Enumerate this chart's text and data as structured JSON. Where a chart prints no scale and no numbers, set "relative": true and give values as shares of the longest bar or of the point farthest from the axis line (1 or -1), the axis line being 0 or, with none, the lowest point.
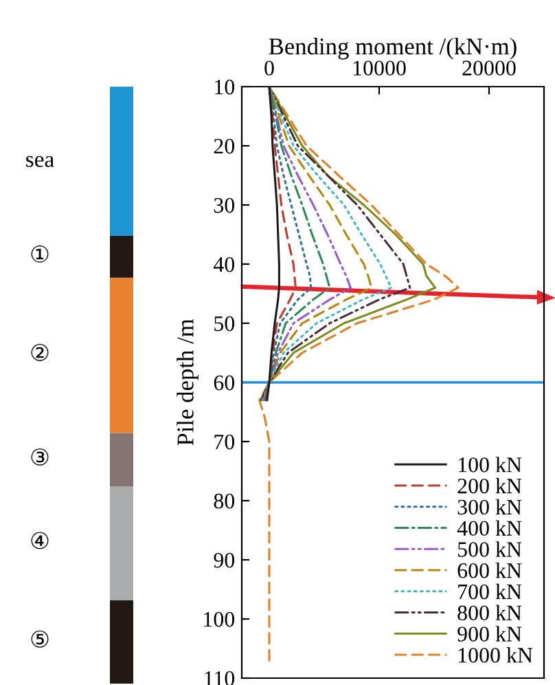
{
  "chart_data": [
    {
      "type": "bar",
      "stacked": true,
      "relative": true,
      "categories": [
        null
      ],
      "series": [
        {
          "name": "⑤",
          "color": "#221814",
          "values": [
            0.14
          ]
        },
        {
          "name": "④",
          "color": "#abacae",
          "values": [
            0.19
          ]
        },
        {
          "name": "③",
          "color": "#847370",
          "values": [
            0.09
          ]
        },
        {
          "name": "②",
          "color": "#e8822e",
          "values": [
            0.26
          ]
        },
        {
          "name": "①",
          "color": "#221814",
          "values": [
            0.07
          ]
        },
        {
          "name": "sea",
          "color": "#1f95d2",
          "values": [
            0.25
          ]
        }
      ]
    },
    {
      "type": "line",
      "orientation": "horizontal",
      "xlabel": "Bending moment /(kN·m)",
      "ylabel": "Pile depth /m",
      "xlim": [
        -2500,
        25000
      ],
      "xticks": [
        0,
        10000,
        20000
      ],
      "ylim": [
        110,
        10
      ],
      "yticks": [
        10,
        20,
        30,
        40,
        50,
        60,
        70,
        80,
        90,
        100,
        110
      ],
      "grid": false,
      "legend": "bottom right",
      "marker": "none",
      "x": [
        10,
        15,
        20,
        25,
        30,
        35,
        40,
        42,
        44,
        46,
        50,
        55,
        60,
        63,
        66,
        70,
        80,
        90,
        100,
        107
      ],
      "ref_lines": [
        {
          "axis": "y",
          "value": 60,
          "label": null,
          "color": "#1f8fd8",
          "line_style": "solid"
        }
      ],
      "series": [
        {
          "name": "100 kN",
          "color": "#1a1a1a",
          "line_style": "solid",
          "values": [
            0,
            200,
            300,
            500,
            700,
            800,
            900,
            900,
            900,
            800,
            500,
            200,
            0,
            -200,
            null,
            null,
            null,
            null,
            null,
            null
          ]
        },
        {
          "name": "200 kN",
          "color": "#c0392b",
          "line_style": "dashed",
          "values": [
            0,
            300,
            500,
            800,
            1100,
            1600,
            2200,
            2300,
            2400,
            1900,
            700,
            300,
            0,
            -300,
            null,
            null,
            null,
            null,
            null,
            null
          ]
        },
        {
          "name": "300 kN",
          "color": "#2e6da4",
          "line_style": "dotted",
          "values": [
            0,
            400,
            700,
            1300,
            2000,
            2700,
            3400,
            3700,
            3800,
            2600,
            1000,
            400,
            0,
            -300,
            null,
            null,
            null,
            null,
            null,
            null
          ]
        },
        {
          "name": "400 kN",
          "color": "#2e8b57",
          "line_style": "dashdot",
          "values": [
            0,
            600,
            1100,
            2000,
            3000,
            3900,
            4900,
            5200,
            5500,
            4000,
            1500,
            600,
            0,
            -400,
            null,
            null,
            null,
            null,
            null,
            null
          ]
        },
        {
          "name": "500 kN",
          "color": "#9b59d0",
          "line_style": "dashdotdot",
          "values": [
            0,
            700,
            1300,
            2600,
            4000,
            5300,
            6500,
            7000,
            7400,
            5500,
            2200,
            800,
            0,
            -500,
            null,
            null,
            null,
            null,
            null,
            null
          ]
        },
        {
          "name": "600 kN",
          "color": "#b8860b",
          "line_style": "dashed",
          "values": [
            0,
            900,
            1800,
            3600,
            5500,
            7000,
            8600,
            9000,
            9300,
            7000,
            3000,
            1000,
            0,
            -500,
            null,
            null,
            null,
            null,
            null,
            null
          ]
        },
        {
          "name": "700 kN",
          "color": "#3fb8c8",
          "line_style": "dotted",
          "values": [
            0,
            1100,
            2200,
            4400,
            6800,
            8400,
            10100,
            10600,
            11100,
            8500,
            4300,
            1300,
            0,
            -600,
            null,
            null,
            null,
            null,
            null,
            null
          ]
        },
        {
          "name": "800 kN",
          "color": "#4a2a3a",
          "line_style": "dashdotdot",
          "values": [
            0,
            1300,
            2600,
            5300,
            8000,
            10100,
            12200,
            12500,
            12800,
            10000,
            5500,
            1700,
            0,
            -700,
            null,
            null,
            null,
            null,
            null,
            null
          ]
        },
        {
          "name": "900 kN",
          "color": "#7a8b1a",
          "line_style": "solid",
          "values": [
            0,
            1500,
            3000,
            5300,
            8600,
            11500,
            14000,
            14300,
            15100,
            12500,
            6800,
            2200,
            0,
            -800,
            null,
            null,
            null,
            null,
            null,
            null
          ]
        },
        {
          "name": "1000 kN",
          "color": "#e67e22",
          "line_style": "dashed",
          "values": [
            0,
            1700,
            3400,
            6300,
            9300,
            11800,
            14300,
            16000,
            17200,
            15000,
            8000,
            3000,
            0,
            -900,
            -400,
            0,
            0,
            0,
            0,
            0
          ]
        }
      ]
    }
  ]
}
